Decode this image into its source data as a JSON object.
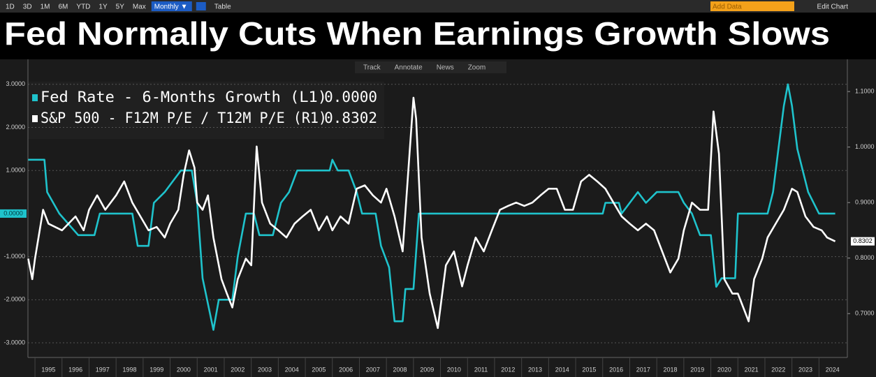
{
  "ui": {
    "ranges": [
      "1D",
      "3D",
      "1M",
      "6M",
      "YTD",
      "1Y",
      "5Y",
      "Max"
    ],
    "interval": "Monthly ▼",
    "table": "Table",
    "add_data": "Add Data",
    "edit_chart": "Edit Chart",
    "tools": [
      "Track",
      "Annotate",
      "News",
      "Zoom"
    ]
  },
  "chart_data": {
    "type": "line",
    "title": "Fed Normally Cuts When Earnings Growth Slows",
    "xlim": [
      1994.74,
      2025.05
    ],
    "xticks": [
      {
        "value": 1995.5,
        "label": "1995"
      },
      {
        "value": 1996.5,
        "label": "1996"
      },
      {
        "value": 1997.5,
        "label": "1997"
      },
      {
        "value": 1998.5,
        "label": "1998"
      },
      {
        "value": 1999.5,
        "label": "1999"
      },
      {
        "value": 2000.5,
        "label": "2000"
      },
      {
        "value": 2001.5,
        "label": "2001"
      },
      {
        "value": 2002.5,
        "label": "2002"
      },
      {
        "value": 2003.5,
        "label": "2003"
      },
      {
        "value": 2004.5,
        "label": "2004"
      },
      {
        "value": 2005.5,
        "label": "2005"
      },
      {
        "value": 2006.5,
        "label": "2006"
      },
      {
        "value": 2007.5,
        "label": "2007"
      },
      {
        "value": 2008.5,
        "label": "2008"
      },
      {
        "value": 2009.5,
        "label": "2009"
      },
      {
        "value": 2010.5,
        "label": "2010"
      },
      {
        "value": 2011.5,
        "label": "2011"
      },
      {
        "value": 2012.5,
        "label": "2012"
      },
      {
        "value": 2013.5,
        "label": "2013"
      },
      {
        "value": 2014.5,
        "label": "2014"
      },
      {
        "value": 2015.5,
        "label": "2015"
      },
      {
        "value": 2016.5,
        "label": "2016"
      },
      {
        "value": 2017.5,
        "label": "2017"
      },
      {
        "value": 2018.5,
        "label": "2018"
      },
      {
        "value": 2019.5,
        "label": "2019"
      },
      {
        "value": 2020.5,
        "label": "2020"
      },
      {
        "value": 2021.5,
        "label": "2021"
      },
      {
        "value": 2022.5,
        "label": "2022"
      },
      {
        "value": 2023.5,
        "label": "2023"
      },
      {
        "value": 2024.5,
        "label": "2024"
      }
    ],
    "ylim": [
      -3.34,
      3.58
    ],
    "yticks": [
      {
        "value": 3,
        "label": "3.0000"
      },
      {
        "value": 2,
        "label": "2.0000"
      },
      {
        "value": 1,
        "label": "1.0000"
      },
      {
        "value": -1,
        "label": "-1.0000"
      },
      {
        "value": -2,
        "label": "-2.0000"
      },
      {
        "value": -3,
        "label": "-3.0000"
      }
    ],
    "y2lim": [
      0.621,
      1.158
    ],
    "y2ticks": [
      {
        "value": 1.1,
        "label": "1.1000"
      },
      {
        "value": 1.0,
        "label": "1.0000"
      },
      {
        "value": 0.9,
        "label": "0.9000"
      },
      {
        "value": 0.8,
        "label": "0.8000"
      },
      {
        "value": 0.7,
        "label": "0.7000"
      }
    ],
    "grid": true,
    "series": [
      {
        "name": "Fed Rate - 6-Months Growth (L1)",
        "color": "#1fc3cc",
        "legend_value": {
          "value": 0,
          "label": "0.0000"
        },
        "x": [
          1994.75,
          1995.35,
          1995.45,
          1995.9,
          1996.6,
          1997.2,
          1997.4,
          1998.6,
          1998.8,
          1999.2,
          1999.4,
          1999.8,
          2000.1,
          2000.4,
          2000.8,
          2001.0,
          2001.2,
          2001.6,
          2001.8,
          2002.3,
          2002.5,
          2002.8,
          2003.1,
          2003.3,
          2003.8,
          2004.1,
          2004.4,
          2004.7,
          2005.9,
          2006.0,
          2006.2,
          2006.6,
          2006.9,
          2007.1,
          2007.6,
          2007.8,
          2008.1,
          2008.3,
          2008.6,
          2008.7,
          2009.0,
          2009.2,
          2016.0,
          2016.1,
          2016.6,
          2016.7,
          2017.0,
          2017.3,
          2017.6,
          2018.0,
          2018.8,
          2019.0,
          2019.3,
          2019.6,
          2020.0,
          2020.2,
          2020.4,
          2020.9,
          2021.0,
          2022.1,
          2022.3,
          2022.5,
          2022.7,
          2022.85,
          2023.0,
          2023.2,
          2023.4,
          2023.6,
          2024.0,
          2024.6
        ],
        "values": [
          1.25,
          1.25,
          0.5,
          0,
          -0.5,
          -0.5,
          0,
          0,
          -0.75,
          -0.75,
          0.25,
          0.5,
          0.75,
          1,
          1,
          0.25,
          -1.5,
          -2.7,
          -2,
          -2,
          -1,
          0,
          0,
          -0.5,
          -0.5,
          0.25,
          0.5,
          1,
          1,
          1.25,
          1,
          1,
          0.5,
          0,
          0,
          -0.75,
          -1.25,
          -2.5,
          -2.5,
          -1.75,
          -1.75,
          0,
          0,
          0.25,
          0.25,
          0,
          0.25,
          0.5,
          0.25,
          0.5,
          0.5,
          0.25,
          0,
          -0.5,
          -0.5,
          -1.7,
          -1.5,
          -1.5,
          0,
          0,
          0.5,
          1.5,
          2.5,
          3,
          2.5,
          1.5,
          1,
          0.5,
          0,
          0
        ]
      },
      {
        "name": "S&P 500 - F12M P/E / T12M P/E (R1)",
        "color": "#ffffff",
        "axis": "y2",
        "x": [
          1994.75,
          1994.9,
          1995.0,
          1995.3,
          1995.5,
          1996.0,
          1996.5,
          1996.8,
          1997.0,
          1997.3,
          1997.6,
          1998.0,
          1998.3,
          1998.6,
          1998.9,
          1999.2,
          1999.5,
          1999.8,
          2000.0,
          2000.3,
          2000.5,
          2000.7,
          2000.9,
          2001.0,
          2001.2,
          2001.4,
          2001.6,
          2001.9,
          2002.1,
          2002.3,
          2002.5,
          2002.8,
          2003.0,
          2003.2,
          2003.4,
          2003.7,
          2004.0,
          2004.3,
          2004.6,
          2004.9,
          2005.2,
          2005.5,
          2005.8,
          2006.0,
          2006.3,
          2006.6,
          2006.9,
          2007.2,
          2007.5,
          2007.8,
          2008.0,
          2008.3,
          2008.6,
          2008.8,
          2009.0,
          2009.1,
          2009.3,
          2009.6,
          2009.9,
          2010.2,
          2010.5,
          2010.8,
          2011.0,
          2011.3,
          2011.6,
          2011.9,
          2012.2,
          2012.5,
          2012.8,
          2013.1,
          2013.4,
          2013.7,
          2014.0,
          2014.3,
          2014.6,
          2014.9,
          2015.2,
          2015.5,
          2015.8,
          2016.1,
          2016.4,
          2016.7,
          2017.0,
          2017.3,
          2017.6,
          2017.9,
          2018.2,
          2018.5,
          2018.8,
          2019.0,
          2019.3,
          2019.6,
          2019.9,
          2020.1,
          2020.3,
          2020.5,
          2020.8,
          2021.0,
          2021.2,
          2021.4,
          2021.6,
          2021.9,
          2022.1,
          2022.4,
          2022.7,
          2023.0,
          2023.2,
          2023.5,
          2023.8,
          2024.1,
          2024.3,
          2024.6
        ],
        "values": [
          0.799,
          0.762,
          0.799,
          0.887,
          0.862,
          0.85,
          0.875,
          0.85,
          0.887,
          0.913,
          0.887,
          0.913,
          0.938,
          0.9,
          0.875,
          0.85,
          0.856,
          0.837,
          0.862,
          0.887,
          0.95,
          0.994,
          0.963,
          0.9,
          0.887,
          0.913,
          0.837,
          0.762,
          0.736,
          0.711,
          0.762,
          0.799,
          0.787,
          1.001,
          0.9,
          0.862,
          0.85,
          0.837,
          0.862,
          0.875,
          0.887,
          0.85,
          0.875,
          0.85,
          0.875,
          0.862,
          0.925,
          0.931,
          0.913,
          0.9,
          0.925,
          0.875,
          0.812,
          0.95,
          1.089,
          1.051,
          0.837,
          0.736,
          0.674,
          0.787,
          0.812,
          0.749,
          0.787,
          0.837,
          0.812,
          0.85,
          0.887,
          0.894,
          0.9,
          0.894,
          0.9,
          0.913,
          0.925,
          0.925,
          0.887,
          0.887,
          0.938,
          0.95,
          0.938,
          0.925,
          0.9,
          0.875,
          0.862,
          0.85,
          0.862,
          0.85,
          0.812,
          0.774,
          0.799,
          0.85,
          0.9,
          0.887,
          0.887,
          1.064,
          0.988,
          0.762,
          0.736,
          0.736,
          0.711,
          0.686,
          0.762,
          0.799,
          0.837,
          0.862,
          0.887,
          0.925,
          0.919,
          0.875,
          0.856,
          0.85,
          0.837,
          0.8302
        ]
      }
    ]
  }
}
